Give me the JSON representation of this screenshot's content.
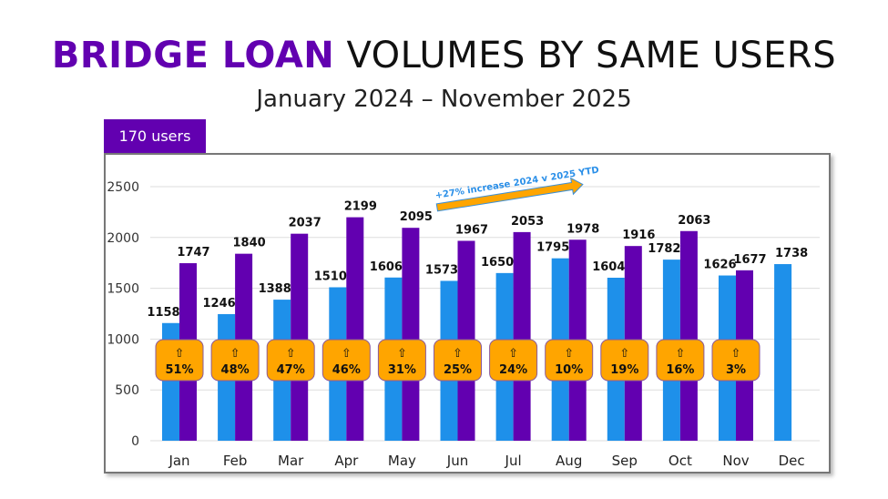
{
  "header": {
    "title_highlight": "BRIDGE LOAN",
    "title_rest": " VOLUMES BY SAME USERS",
    "subtitle": "January 2024 – November 2025",
    "tab_label": "170 users"
  },
  "chart_data": {
    "type": "bar",
    "categories": [
      "Jan",
      "Feb",
      "Mar",
      "Apr",
      "May",
      "Jun",
      "Jul",
      "Aug",
      "Sep",
      "Oct",
      "Nov",
      "Dec"
    ],
    "series": [
      {
        "values": [
          1158,
          1246,
          1388,
          1510,
          1606,
          1573,
          1650,
          1795,
          1604,
          1782,
          1626,
          1738
        ],
        "color": "#1e90ea"
      },
      {
        "values": [
          1747,
          1840,
          2037,
          2199,
          2095,
          1967,
          2053,
          1978,
          1916,
          2063,
          1677,
          null
        ],
        "color": "#6200b0"
      }
    ],
    "growth_labels": [
      "51%",
      "48%",
      "47%",
      "46%",
      "31%",
      "25%",
      "24%",
      "10%",
      "19%",
      "16%",
      "3%"
    ],
    "growth_icon": "up-arrow-icon",
    "yticks": [
      0,
      500,
      1000,
      1500,
      2000,
      2500
    ],
    "ylim": [
      0,
      2500
    ],
    "grid": true,
    "annotation": "+27% increase 2024 v 2025 YTD",
    "badge_color": "#ffa500"
  }
}
